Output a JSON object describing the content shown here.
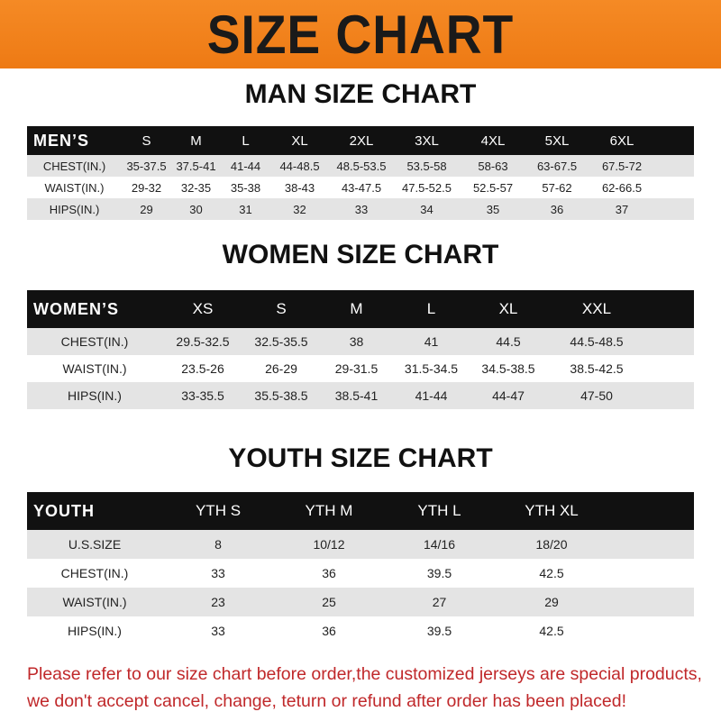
{
  "title": "SIZE CHART",
  "men": {
    "title": "MAN SIZE CHART",
    "header": "MEN’S",
    "sizes": [
      "S",
      "M",
      "L",
      "XL",
      "2XL",
      "3XL",
      "4XL",
      "5XL",
      "6XL"
    ],
    "rows": [
      {
        "label": "CHEST(IN.)",
        "values": [
          "35-37.5",
          "37.5-41",
          "41-44",
          "44-48.5",
          "48.5-53.5",
          "53.5-58",
          "58-63",
          "63-67.5",
          "67.5-72"
        ]
      },
      {
        "label": "WAIST(IN.)",
        "values": [
          "29-32",
          "32-35",
          "35-38",
          "38-43",
          "43-47.5",
          "47.5-52.5",
          "52.5-57",
          "57-62",
          "62-66.5"
        ]
      },
      {
        "label": "HIPS(IN.)",
        "values": [
          "29",
          "30",
          "31",
          "32",
          "33",
          "34",
          "35",
          "36",
          "37"
        ]
      }
    ]
  },
  "women": {
    "title": "WOMEN SIZE CHART",
    "header": "WOMEN’S",
    "sizes": [
      "XS",
      "S",
      "M",
      "L",
      "XL",
      "XXL"
    ],
    "rows": [
      {
        "label": "CHEST(IN.)",
        "values": [
          "29.5-32.5",
          "32.5-35.5",
          "38",
          "41",
          "44.5",
          "44.5-48.5"
        ]
      },
      {
        "label": "WAIST(IN.)",
        "values": [
          "23.5-26",
          "26-29",
          "29-31.5",
          "31.5-34.5",
          "34.5-38.5",
          "38.5-42.5"
        ]
      },
      {
        "label": "HIPS(IN.)",
        "values": [
          "33-35.5",
          "35.5-38.5",
          "38.5-41",
          "41-44",
          "44-47",
          "47-50"
        ]
      }
    ]
  },
  "youth": {
    "title": "YOUTH SIZE CHART",
    "header": "YOUTH",
    "sizes": [
      "YTH S",
      "YTH M",
      "YTH L",
      "YTH XL"
    ],
    "rows": [
      {
        "label": "U.S.SIZE",
        "values": [
          "8",
          "10/12",
          "14/16",
          "18/20"
        ]
      },
      {
        "label": "CHEST(IN.)",
        "values": [
          "33",
          "36",
          "39.5",
          "42.5"
        ]
      },
      {
        "label": "WAIST(IN.)",
        "values": [
          "23",
          "25",
          "27",
          "29"
        ]
      },
      {
        "label": "HIPS(IN.)",
        "values": [
          "33",
          "36",
          "39.5",
          "42.5"
        ]
      }
    ]
  },
  "footer": {
    "line1": "Please refer to our size chart before order,the customized jerseys are special products,",
    "line2": "we don't accept cancel, change, teturn or refund after order has been placed!"
  },
  "colors": {
    "banner": "#f08020",
    "header_row": "#111111",
    "stripe": "#e4e4e4",
    "notice": "#c0282a"
  }
}
